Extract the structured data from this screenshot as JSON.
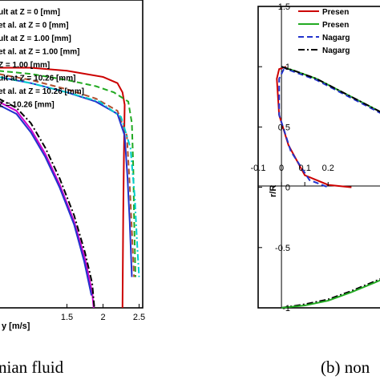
{
  "captions": {
    "left": "nian fluid",
    "right": "(b) non"
  },
  "chart_data": [
    {
      "type": "line",
      "title": "",
      "xlabel": "y [m/s]",
      "ylabel": "",
      "xlim": [
        0.55,
        2.55
      ],
      "ylim": [
        0,
        1
      ],
      "x_ticks": [
        "1.5",
        "2",
        "2.5"
      ],
      "legend": [
        {
          "text": "ult at Z = 0 [mm]",
          "color": "#cc0000",
          "dash": "solid"
        },
        {
          "text": "et al. at Z = 0 [mm]",
          "color": "#22aa22",
          "dash": "dash"
        },
        {
          "text": "ult at Z = 1.00 [mm]",
          "color": "#8b2020",
          "dash": "solid"
        },
        {
          "text": "et al. at Z = 1.00 [mm]",
          "color": "#b05030",
          "dash": "dash"
        },
        {
          "text": "Z = 1.00 [mm]",
          "color": "#2233cc",
          "dash": "solid"
        },
        {
          "text": "ult at Z = 10.26 [mm]",
          "color": "#00cccc",
          "dash": "dashdot"
        },
        {
          "text": "et al. at Z = 10.26 [mm]",
          "color": "#000000",
          "dash": "dashdot"
        },
        {
          "text": "Z = 10.26 [mm]",
          "color": "#cc00cc",
          "dash": "solid"
        }
      ],
      "series": [
        {
          "color": "#cc0000",
          "dash": "solid",
          "points": [
            [
              0.55,
              0.78
            ],
            [
              1.0,
              0.78
            ],
            [
              1.5,
              0.77
            ],
            [
              2.0,
              0.75
            ],
            [
              2.2,
              0.73
            ],
            [
              2.27,
              0.7
            ],
            [
              2.3,
              0.66
            ],
            [
              2.29,
              0.5
            ],
            [
              2.28,
              0.3
            ],
            [
              2.27,
              0.0
            ]
          ]
        },
        {
          "color": "#22aa22",
          "dash": "dash",
          "points": [
            [
              0.55,
              0.77
            ],
            [
              1.0,
              0.76
            ],
            [
              1.5,
              0.74
            ],
            [
              1.9,
              0.72
            ],
            [
              2.15,
              0.7
            ],
            [
              2.35,
              0.67
            ],
            [
              2.4,
              0.6
            ],
            [
              2.42,
              0.45
            ],
            [
              2.43,
              0.3
            ],
            [
              2.45,
              0.1
            ]
          ]
        },
        {
          "color": "#b05030",
          "dash": "dash",
          "points": [
            [
              0.55,
              0.76
            ],
            [
              1.0,
              0.74
            ],
            [
              1.5,
              0.71
            ],
            [
              1.9,
              0.68
            ],
            [
              2.2,
              0.64
            ],
            [
              2.33,
              0.56
            ],
            [
              2.37,
              0.4
            ],
            [
              2.4,
              0.25
            ],
            [
              2.43,
              0.1
            ]
          ]
        },
        {
          "color": "#2233cc",
          "dash": "solid",
          "points": [
            [
              0.55,
              0.75
            ],
            [
              1.0,
              0.73
            ],
            [
              1.5,
              0.7
            ],
            [
              1.9,
              0.67
            ],
            [
              2.2,
              0.63
            ],
            [
              2.3,
              0.56
            ],
            [
              2.34,
              0.42
            ],
            [
              2.37,
              0.28
            ],
            [
              2.4,
              0.1
            ]
          ]
        },
        {
          "color": "#00cccc",
          "dash": "dashdot",
          "points": [
            [
              0.55,
              0.75
            ],
            [
              1.0,
              0.73
            ],
            [
              1.5,
              0.7
            ],
            [
              1.95,
              0.67
            ],
            [
              2.25,
              0.62
            ],
            [
              2.38,
              0.52
            ],
            [
              2.44,
              0.36
            ],
            [
              2.47,
              0.22
            ],
            [
              2.5,
              0.1
            ]
          ]
        },
        {
          "color": "#cc00cc",
          "dash": "solid",
          "points": [
            [
              0.55,
              0.67
            ],
            [
              0.8,
              0.64
            ],
            [
              1.0,
              0.58
            ],
            [
              1.2,
              0.5
            ],
            [
              1.4,
              0.4
            ],
            [
              1.6,
              0.28
            ],
            [
              1.75,
              0.16
            ],
            [
              1.85,
              0.05
            ],
            [
              1.87,
              0.0
            ]
          ]
        },
        {
          "color": "#000000",
          "dash": "dashdot",
          "points": [
            [
              0.55,
              0.68
            ],
            [
              0.8,
              0.65
            ],
            [
              1.0,
              0.6
            ],
            [
              1.2,
              0.52
            ],
            [
              1.4,
              0.42
            ],
            [
              1.6,
              0.3
            ],
            [
              1.75,
              0.18
            ],
            [
              1.85,
              0.08
            ],
            [
              1.88,
              0.0
            ]
          ]
        },
        {
          "color": "#2233cc",
          "dash": "solid",
          "points": [
            [
              0.55,
              0.66
            ],
            [
              0.8,
              0.63
            ],
            [
              1.0,
              0.57
            ],
            [
              1.2,
              0.49
            ],
            [
              1.4,
              0.39
            ],
            [
              1.6,
              0.27
            ],
            [
              1.74,
              0.15
            ],
            [
              1.84,
              0.04
            ]
          ]
        }
      ]
    },
    {
      "type": "line",
      "title": "",
      "xlabel": "",
      "ylabel": "r/R",
      "xlim": [
        -0.1,
        0.45
      ],
      "ylim": [
        -1,
        1.5
      ],
      "x_ticks": [
        "-0.1",
        "0",
        "0.1",
        "0.2"
      ],
      "y_ticks": [
        "-1",
        "-0.5",
        "0",
        "0.5",
        "1",
        "1.5"
      ],
      "legend": [
        {
          "text": "Presen",
          "color": "#cc0000",
          "dash": "solid"
        },
        {
          "text": "Presen",
          "color": "#22aa22",
          "dash": "solid"
        },
        {
          "text": "Nagarg",
          "color": "#2233cc",
          "dash": "dash"
        },
        {
          "text": "Nagarg",
          "color": "#000000",
          "dash": "dashdot"
        }
      ],
      "series": [
        {
          "color": "#cc0000",
          "dash": "solid",
          "points": [
            [
              0.02,
              1.0
            ],
            [
              -0.01,
              0.98
            ],
            [
              -0.02,
              0.9
            ],
            [
              -0.01,
              0.6
            ],
            [
              0.03,
              0.35
            ],
            [
              0.1,
              0.1
            ],
            [
              0.2,
              0.02
            ],
            [
              0.3,
              0.0
            ]
          ]
        },
        {
          "color": "#22aa22",
          "dash": "solid",
          "points": [
            [
              0.0,
              1.0
            ],
            [
              0.05,
              0.97
            ],
            [
              0.15,
              0.9
            ],
            [
              0.25,
              0.8
            ],
            [
              0.35,
              0.7
            ],
            [
              0.45,
              0.6
            ]
          ]
        },
        {
          "color": "#2233cc",
          "dash": "dash",
          "points": [
            [
              0.0,
              1.0
            ],
            [
              0.05,
              0.96
            ],
            [
              0.15,
              0.89
            ],
            [
              0.25,
              0.79
            ],
            [
              0.35,
              0.69
            ],
            [
              0.45,
              0.59
            ]
          ]
        },
        {
          "color": "#000000",
          "dash": "dashdot",
          "points": [
            [
              0.0,
              1.0
            ],
            [
              0.05,
              0.97
            ],
            [
              0.15,
              0.9
            ],
            [
              0.25,
              0.8
            ],
            [
              0.35,
              0.7
            ],
            [
              0.45,
              0.6
            ]
          ]
        },
        {
          "color": "#2233cc",
          "dash": "dash",
          "points": [
            [
              0.01,
              0.98
            ],
            [
              -0.01,
              0.9
            ],
            [
              -0.01,
              0.6
            ],
            [
              0.04,
              0.3
            ],
            [
              0.12,
              0.06
            ],
            [
              0.2,
              0.0
            ]
          ]
        },
        {
          "color": "#000000",
          "dash": "dashdot",
          "points": [
            [
              0.0,
              -1.0
            ],
            [
              0.1,
              -0.97
            ],
            [
              0.2,
              -0.93
            ],
            [
              0.3,
              -0.86
            ],
            [
              0.4,
              -0.78
            ],
            [
              0.45,
              -0.74
            ]
          ]
        },
        {
          "color": "#22aa22",
          "dash": "solid",
          "points": [
            [
              0.0,
              -1.0
            ],
            [
              0.1,
              -0.98
            ],
            [
              0.2,
              -0.94
            ],
            [
              0.3,
              -0.87
            ],
            [
              0.4,
              -0.79
            ],
            [
              0.45,
              -0.75
            ]
          ]
        }
      ]
    }
  ]
}
